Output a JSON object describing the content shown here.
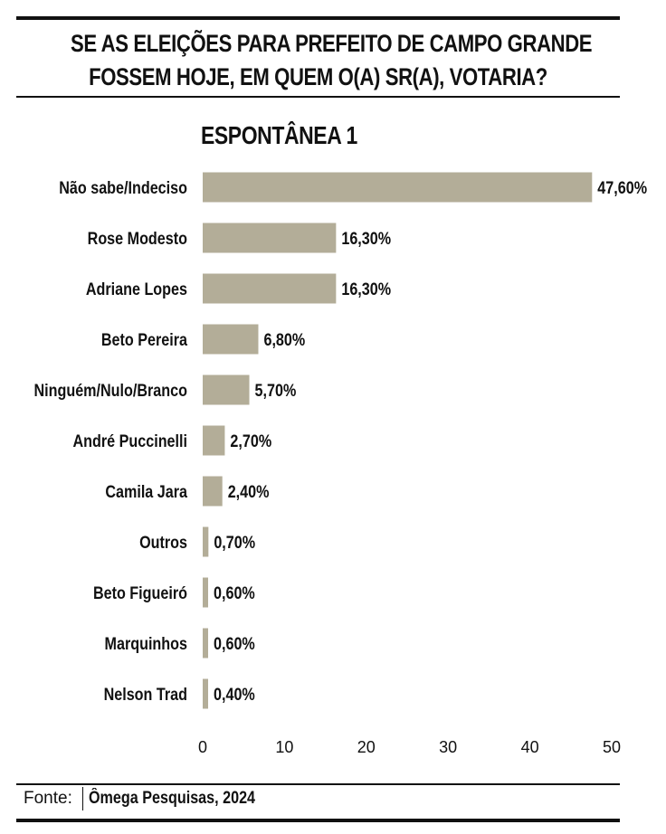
{
  "title_lines": [
    "SE AS ELEIÇÕES PARA PREFEITO DE CAMPO GRANDE",
    "FOSSEM HOJE, EM QUEM O(A) SR(A), VOTARIA?"
  ],
  "footer": {
    "source_label": "Fonte:",
    "source": "Ômega Pesquisas, 2024"
  },
  "colors": {
    "bar": "#b3ad98",
    "text": "#111111",
    "rule": "#111111"
  },
  "chart_data": {
    "type": "bar",
    "orientation": "horizontal",
    "title": "ESPONTÂNEA 1",
    "categories": [
      "Não sabe/Indeciso",
      "Rose Modesto",
      "Adriane Lopes",
      "Beto Pereira",
      "Ninguém/Nulo/Branco",
      "André Puccinelli",
      "Camila Jara",
      "Outros",
      "Beto Figueiró",
      "Marquinhos",
      "Nelson Trad"
    ],
    "values": [
      47.6,
      16.3,
      16.3,
      6.8,
      5.7,
      2.7,
      2.4,
      0.7,
      0.6,
      0.6,
      0.4
    ],
    "value_labels": [
      "47,60%",
      "16,30%",
      "16,30%",
      "6,80%",
      "5,70%",
      "2,70%",
      "2,40%",
      "0,70%",
      "0,60%",
      "0,60%",
      "0,40%"
    ],
    "xlim": [
      0,
      50
    ],
    "xticks": [
      "0",
      "10",
      "20",
      "30",
      "40",
      "50"
    ],
    "grid": false,
    "legend": "none"
  }
}
